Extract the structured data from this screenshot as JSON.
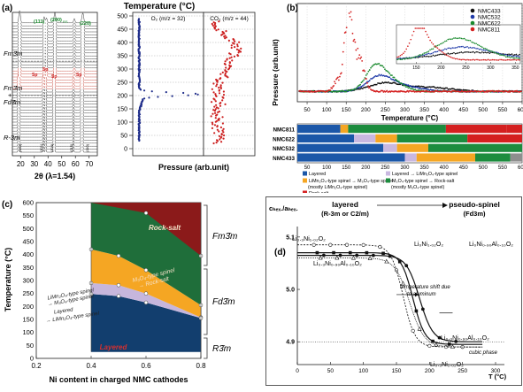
{
  "panel_a": {
    "label": "(a)",
    "top_title": "Temperature (°C)",
    "xlabel": "2θ (λ=1.54)",
    "xticks": [
      "20",
      "30",
      "40",
      "50",
      "60",
      "70"
    ],
    "yticks": [
      "0",
      "50",
      "100",
      "150",
      "200",
      "250",
      "300",
      "350",
      "400",
      "450",
      "500"
    ],
    "phases": [
      "Fm3̄m",
      "Fm3̄m",
      "+",
      "Fd3̄m",
      "R-3m"
    ],
    "peaks_top": [
      "(111)",
      "(200)",
      "(220)"
    ],
    "peaks_rs_sub": "RS",
    "peaks_bottom": [
      "(003)",
      "(101)",
      "(104)",
      "(015)",
      "(110)"
    ],
    "sp_labels": [
      "Sp",
      "Sp",
      "Sp",
      "Sp"
    ],
    "o2_title": "O₂ (m/z = 32)",
    "co2_title": "CO₂ (m/z = 44)",
    "pressure_label": "Pressure (arb.unit)",
    "colors": {
      "o2": "#1f2d8a",
      "co2": "#cc1f1f"
    }
  },
  "panel_b": {
    "label": "(b)",
    "ylabel": "Pressure (arb.unit)",
    "xlabel": "Temperature (°C)",
    "xticks": [
      "50",
      "100",
      "150",
      "200",
      "250",
      "300",
      "350",
      "400",
      "450",
      "500",
      "550",
      "600"
    ],
    "inset_xticks": [
      "150",
      "200",
      "250",
      "300",
      "350"
    ],
    "legend": [
      {
        "name": "NMC433",
        "color": "#111111"
      },
      {
        "name": "NMC532",
        "color": "#1f3aa8"
      },
      {
        "name": "NMC622",
        "color": "#1a8a2e"
      },
      {
        "name": "NMC811",
        "color": "#d42020"
      }
    ],
    "bars": [
      {
        "name": "NMC811",
        "segments": [
          [
            25,
            135,
            "#1b57a8"
          ],
          [
            135,
            155,
            "#f5a623"
          ],
          [
            155,
            405,
            "#1c8c3e"
          ],
          [
            405,
            560,
            "#d42020"
          ],
          [
            560,
            600,
            "#d42020"
          ]
        ]
      },
      {
        "name": "NMC622",
        "segments": [
          [
            25,
            170,
            "#1b57a8"
          ],
          [
            170,
            225,
            "#c9b8e0"
          ],
          [
            225,
            280,
            "#f5a623"
          ],
          [
            280,
            460,
            "#1c8c3e"
          ],
          [
            460,
            600,
            "#d42020"
          ]
        ]
      },
      {
        "name": "NMC532",
        "segments": [
          [
            25,
            245,
            "#1b57a8"
          ],
          [
            245,
            280,
            "#c9b8e0"
          ],
          [
            280,
            360,
            "#f5a623"
          ],
          [
            360,
            600,
            "#1c8c3e"
          ]
        ]
      },
      {
        "name": "NMC433",
        "segments": [
          [
            25,
            300,
            "#1b57a8"
          ],
          [
            300,
            330,
            "#c9b8e0"
          ],
          [
            330,
            480,
            "#f5a623"
          ],
          [
            480,
            570,
            "#1c8c3e"
          ],
          [
            570,
            600,
            "#8e8e8e"
          ]
        ]
      }
    ],
    "key": [
      {
        "text": "Layered",
        "color": "#1b57a8"
      },
      {
        "text": "Layered → LiMn₂O₄-type spinel",
        "color": "#c9b8e0"
      },
      {
        "text": "LiMn₂O₄-type spinel → M₃O₄-type spinel",
        "color": "#f5a623"
      },
      {
        "text": "M₃O₄-type spinel → Rock-salt",
        "color": "#1c8c3e"
      },
      {
        "text": "(mostly LiMn₂O₄-type spinel)",
        "color": ""
      },
      {
        "text": "(mostly M₃O₄-type spinel)",
        "color": ""
      },
      {
        "text": "Rock-salt",
        "color": "#d42020"
      }
    ]
  },
  "panel_c": {
    "label": "(c)",
    "ylabel": "Temperature (°C)",
    "xlabel": "Ni content in charged NMC cathodes",
    "xticks": [
      "0.2",
      "0.4",
      "0.6",
      "0.8"
    ],
    "yticks": [
      "0",
      "50",
      "100",
      "150",
      "200",
      "250",
      "300",
      "350",
      "400",
      "450",
      "500",
      "550",
      "600"
    ],
    "regions": {
      "rocksalt": "Rock-salt",
      "m3o4": "M₃O₄-type spinel",
      "m3o4_b": "→ Rock-salt",
      "limn": "LiMn₂O₄-type spinel",
      "limn_b": "→ M₃O₄-type spinel",
      "lay_to": "Layered",
      "lay_to_b": "→ LiMn₂O₄-type spinel",
      "layered": "Layered"
    },
    "phases": [
      "Fm3̄m",
      "Fd3̄m",
      "R3̄m"
    ],
    "colors": {
      "rocksalt": "#8b1a1a",
      "green": "#1f6e3a",
      "orange": "#f5a623",
      "lavender": "#c6b6dc",
      "layered": "#123e6e"
    }
  },
  "panel_d": {
    "label": "(d)",
    "ylabel": "cₕₑₓ./aₕₑₓ.",
    "xlabel": "T (°C)",
    "xticks": [
      "0",
      "50",
      "100",
      "150",
      "200",
      "250",
      "300"
    ],
    "yticks": [
      "4.9",
      "5.0",
      "5.1"
    ],
    "header_left_a": "layered",
    "header_left_b": "(R-3m or C2/m)",
    "header_right_a": "pseudo-spinel",
    "header_right_b": "(Fd3m)",
    "labels": {
      "l1": "Li₀.₃Ni₁.₀₂O₂",
      "l2": "Li₀.₃Ni₀.₉₀Al₀.₁₀O₂",
      "l3": "Li₀Ni₁.₀₂O₂",
      "l4": "Li₀Ni₀.₉₀Al₀.₁₀O₂",
      "note_a": "temperature shift due",
      "note_b": "to aluminum",
      "l5": "Li₀.₃Ni₀.₉₀Al₀.₁₀O₂",
      "l6": "Li₀.₃Ni₁.₀₂O₂",
      "cubic": "cubic phase"
    }
  }
}
